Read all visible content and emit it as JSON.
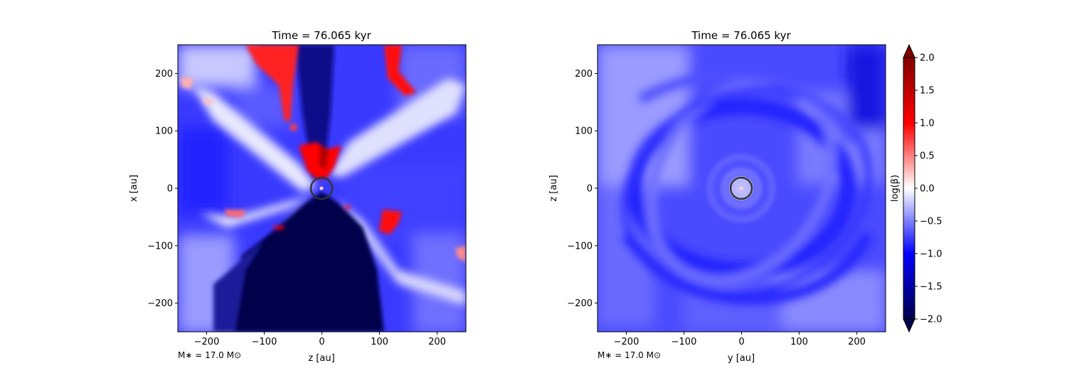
{
  "chart_data": [
    {
      "type": "heatmap",
      "title": "Time = 76.065 kyr",
      "xlabel": "z [au]",
      "ylabel": "x [au]",
      "xlim": [
        -250,
        250
      ],
      "ylim": [
        -250,
        250
      ],
      "x_ticks": [
        -200,
        -100,
        0,
        100,
        200
      ],
      "y_ticks": [
        -200,
        -100,
        0,
        100,
        200
      ],
      "x_tick_labels": [
        "−200",
        "−100",
        "0",
        "100",
        "200"
      ],
      "y_tick_labels": [
        "−200",
        "−100",
        "0",
        "100",
        "200"
      ],
      "annotation": "M$_*$ = 17.0 M$_\\odot$",
      "annotation_text": "M∗ = 17.0 M⊙",
      "sink_circle": {
        "x": 0,
        "y": 0,
        "r": 18
      },
      "field": "log(beta) cross-section, star at origin; outflow cone of low beta (dark blue) toward negative x, red high-beta filaments near the star and at top",
      "grid": false
    },
    {
      "type": "heatmap",
      "title": "Time = 76.065 kyr",
      "xlabel": "y [au]",
      "ylabel": "z [au]",
      "xlim": [
        -250,
        250
      ],
      "ylim": [
        -250,
        250
      ],
      "x_ticks": [
        -200,
        -100,
        0,
        100,
        200
      ],
      "y_ticks": [
        -200,
        -100,
        0,
        100,
        200
      ],
      "x_tick_labels": [
        "−200",
        "−100",
        "0",
        "100",
        "200"
      ],
      "y_tick_labels": [
        "−200",
        "−100",
        "0",
        "100",
        "200"
      ],
      "annotation_text": "M∗ = 17.0 M⊙",
      "sink_circle": {
        "x": 0,
        "y": 0,
        "r": 18
      },
      "field": "log(beta) face-on, mostly blue (-0.5 to -1.2) with spiral structure around the star",
      "grid": false
    }
  ],
  "colorbar": {
    "label": "log(β)",
    "range": [
      -2.0,
      2.0
    ],
    "ticks": [
      -2.0,
      -1.5,
      -1.0,
      -0.5,
      0.0,
      0.5,
      1.0,
      1.5,
      2.0
    ],
    "tick_labels": [
      "−2.0",
      "−1.5",
      "−1.0",
      "−0.5",
      "0.0",
      "0.5",
      "1.0",
      "1.5",
      "2.0"
    ],
    "colormap": "seismic",
    "extend": "both",
    "colors": {
      "low": "#00004c",
      "mid": "#ffffff",
      "high": "#800000"
    }
  }
}
